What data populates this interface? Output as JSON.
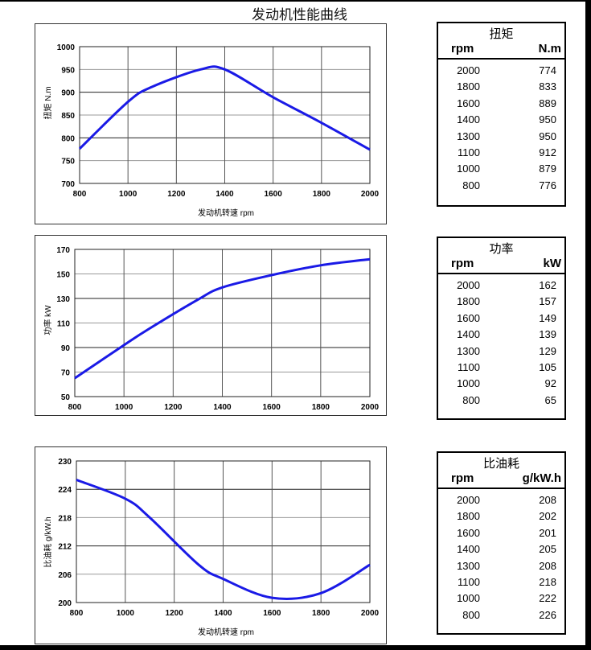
{
  "title": "发动机性能曲线",
  "chart_data": [
    {
      "type": "line",
      "xlabel": "发动机转速 rpm",
      "ylabel": "扭矩 N.m",
      "xlim": [
        800,
        2000
      ],
      "ylim": [
        700,
        1000
      ],
      "xticks": [
        800,
        1000,
        1200,
        1400,
        1600,
        1800,
        2000
      ],
      "yticks": [
        700,
        750,
        800,
        850,
        900,
        950,
        1000
      ],
      "grid": true,
      "color": "#1a1ae6",
      "x": [
        800,
        1000,
        1100,
        1300,
        1400,
        1600,
        1800,
        2000
      ],
      "y": [
        776,
        879,
        912,
        950,
        950,
        889,
        833,
        774
      ]
    },
    {
      "type": "line",
      "xlabel": "发动机转速  rpm",
      "ylabel": "功率 kW",
      "xlim": [
        800,
        2000
      ],
      "ylim": [
        50,
        170
      ],
      "xticks": [
        800,
        1000,
        1200,
        1400,
        1600,
        1800,
        2000
      ],
      "yticks": [
        50,
        70,
        90,
        110,
        130,
        150,
        170
      ],
      "grid": true,
      "color": "#1a1ae6",
      "x": [
        800,
        1000,
        1100,
        1300,
        1400,
        1600,
        1800,
        2000
      ],
      "y": [
        65,
        92,
        105,
        129,
        139,
        149,
        157,
        162
      ]
    },
    {
      "type": "line",
      "xlabel": "发动机转速 rpm",
      "ylabel": "比油耗  g/kW.h",
      "xlim": [
        800,
        2000
      ],
      "ylim": [
        200,
        230
      ],
      "xticks": [
        800,
        1000,
        1200,
        1400,
        1600,
        1800,
        2000
      ],
      "yticks": [
        200,
        206,
        212,
        218,
        224,
        230
      ],
      "grid": true,
      "color": "#1a1ae6",
      "x": [
        800,
        1000,
        1100,
        1300,
        1400,
        1600,
        1800,
        2000
      ],
      "y": [
        226,
        222,
        218,
        208,
        205,
        201,
        202,
        208
      ]
    }
  ],
  "tables": [
    {
      "title": "扭矩",
      "col1": "rpm",
      "col2": "N.m",
      "rows": [
        [
          "2000",
          "774"
        ],
        [
          "1800",
          "833"
        ],
        [
          "1600",
          "889"
        ],
        [
          "1400",
          "950"
        ],
        [
          "1300",
          "950"
        ],
        [
          "1100",
          "912"
        ],
        [
          "1000",
          "879"
        ],
        [
          "800",
          "776"
        ]
      ]
    },
    {
      "title": "功率",
      "col1": "rpm",
      "col2": "kW",
      "rows": [
        [
          "2000",
          "162"
        ],
        [
          "1800",
          "157"
        ],
        [
          "1600",
          "149"
        ],
        [
          "1400",
          "139"
        ],
        [
          "1300",
          "129"
        ],
        [
          "1100",
          "105"
        ],
        [
          "1000",
          "92"
        ],
        [
          "800",
          "65"
        ]
      ]
    },
    {
      "title": "比油耗",
      "col1": "rpm",
      "col2": "g/kW.h",
      "rows": [
        [
          "2000",
          "208"
        ],
        [
          "1800",
          "202"
        ],
        [
          "1600",
          "201"
        ],
        [
          "1400",
          "205"
        ],
        [
          "1300",
          "208"
        ],
        [
          "1100",
          "218"
        ],
        [
          "1000",
          "222"
        ],
        [
          "800",
          "226"
        ]
      ]
    }
  ]
}
